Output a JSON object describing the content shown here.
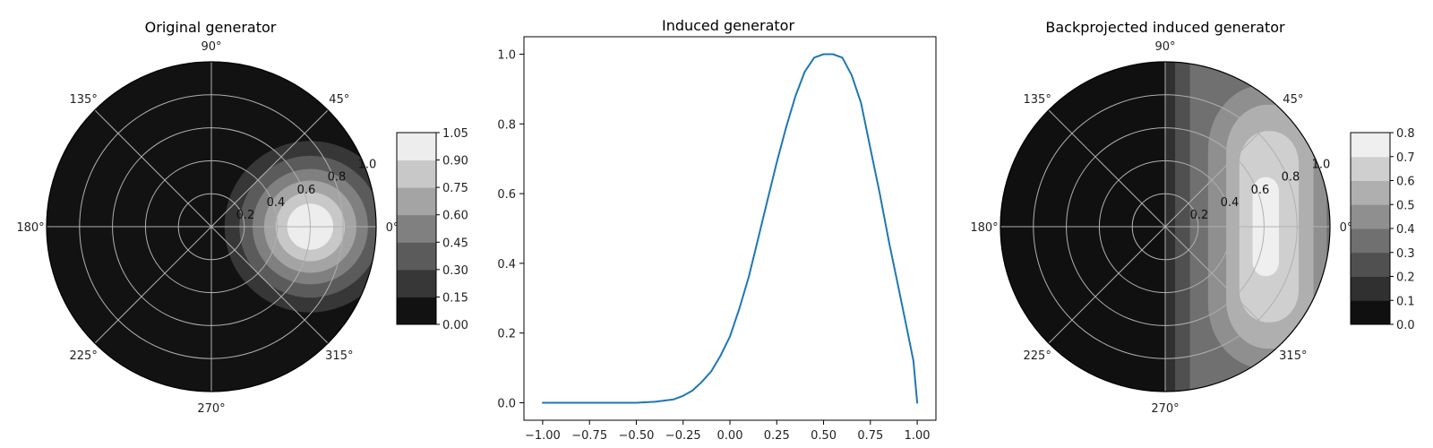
{
  "chart_data": [
    {
      "type": "heatmap",
      "projection": "polar",
      "title": "Original generator",
      "angle_ticks": [
        "0°",
        "45°",
        "90°",
        "135°",
        "180°",
        "225°",
        "270°",
        "315°"
      ],
      "radius_ticks": [
        "0.2",
        "0.4",
        "0.6",
        "0.8",
        "1.0"
      ],
      "rlim": [
        0,
        1.0
      ],
      "grid": true,
      "colormap": "gray",
      "colorbar": {
        "levels": [
          0.0,
          0.15,
          0.3,
          0.45,
          0.6,
          0.75,
          0.9,
          1.05
        ],
        "tick_labels": [
          "0.00",
          "0.15",
          "0.30",
          "0.45",
          "0.60",
          "0.75",
          "0.90",
          "1.05"
        ]
      },
      "contour_regions": [
        {
          "level_index": 1,
          "center_r": 0.6,
          "center_angle_deg": 0,
          "radius": 0.52
        },
        {
          "level_index": 2,
          "center_r": 0.6,
          "center_angle_deg": 0,
          "radius": 0.43
        },
        {
          "level_index": 3,
          "center_r": 0.6,
          "center_angle_deg": 0,
          "radius": 0.35
        },
        {
          "level_index": 4,
          "center_r": 0.6,
          "center_angle_deg": 0,
          "radius": 0.28
        },
        {
          "level_index": 5,
          "center_r": 0.6,
          "center_angle_deg": 0,
          "radius": 0.21
        },
        {
          "level_index": 6,
          "center_r": 0.6,
          "center_angle_deg": 0,
          "radius": 0.14
        }
      ]
    },
    {
      "type": "line",
      "title": "Induced generator",
      "xlim": [
        -1.1,
        1.1
      ],
      "ylim": [
        -0.05,
        1.05
      ],
      "x_ticks": [
        -1.0,
        -0.75,
        -0.5,
        -0.25,
        0.0,
        0.25,
        0.5,
        0.75,
        1.0
      ],
      "x_tick_labels": [
        "−1.00",
        "−0.75",
        "−0.50",
        "−0.25",
        "0.00",
        "0.25",
        "0.50",
        "0.75",
        "1.00"
      ],
      "y_ticks": [
        0.0,
        0.2,
        0.4,
        0.6,
        0.8,
        1.0
      ],
      "y_tick_labels": [
        "0.0",
        "0.2",
        "0.4",
        "0.6",
        "0.8",
        "1.0"
      ],
      "grid": false,
      "series": [
        {
          "color": "#1f77b4",
          "x": [
            -1.0,
            -0.75,
            -0.5,
            -0.4,
            -0.3,
            -0.25,
            -0.2,
            -0.15,
            -0.1,
            -0.05,
            0.0,
            0.05,
            0.1,
            0.15,
            0.2,
            0.25,
            0.3,
            0.35,
            0.4,
            0.45,
            0.5,
            0.55,
            0.6,
            0.65,
            0.7,
            0.75,
            0.8,
            0.85,
            0.9,
            0.95,
            0.98,
            1.0
          ],
          "y": [
            0.0,
            0.0,
            0.0,
            0.003,
            0.01,
            0.02,
            0.035,
            0.06,
            0.09,
            0.135,
            0.19,
            0.27,
            0.36,
            0.47,
            0.58,
            0.69,
            0.79,
            0.88,
            0.95,
            0.99,
            1.0,
            1.0,
            0.99,
            0.94,
            0.86,
            0.73,
            0.6,
            0.46,
            0.33,
            0.2,
            0.12,
            0.0
          ]
        }
      ]
    },
    {
      "type": "heatmap",
      "projection": "polar",
      "title": "Backprojected induced generator",
      "angle_ticks": [
        "0°",
        "45°",
        "90°",
        "135°",
        "180°",
        "225°",
        "270°",
        "315°"
      ],
      "radius_ticks": [
        "0.2",
        "0.4",
        "0.6",
        "0.8",
        "1.0"
      ],
      "rlim": [
        0,
        1.0
      ],
      "grid": true,
      "colormap": "gray",
      "colorbar": {
        "levels": [
          0.0,
          0.1,
          0.2,
          0.3,
          0.4,
          0.5,
          0.6,
          0.7,
          0.8
        ],
        "tick_labels": [
          "0.0",
          "0.1",
          "0.2",
          "0.3",
          "0.4",
          "0.5",
          "0.6",
          "0.7",
          "0.8"
        ]
      },
      "contour_regions": [
        {
          "level_index": 1,
          "x_min": 0.0,
          "x_max": 1.0
        },
        {
          "level_index": 2,
          "x_min": 0.06,
          "x_max": 1.0
        },
        {
          "level_index": 3,
          "x_min": 0.15,
          "x_max": 1.0
        },
        {
          "level_index": 4,
          "x_min": 0.26,
          "x_max": 0.98,
          "y_half": 0.86
        },
        {
          "level_index": 5,
          "x_min": 0.37,
          "x_max": 0.9,
          "y_half": 0.74
        },
        {
          "level_index": 6,
          "x_min": 0.45,
          "x_max": 0.81,
          "y_half": 0.58
        },
        {
          "level_index": 7,
          "x_min": 0.53,
          "x_max": 0.69,
          "y_half": 0.3
        }
      ]
    }
  ]
}
